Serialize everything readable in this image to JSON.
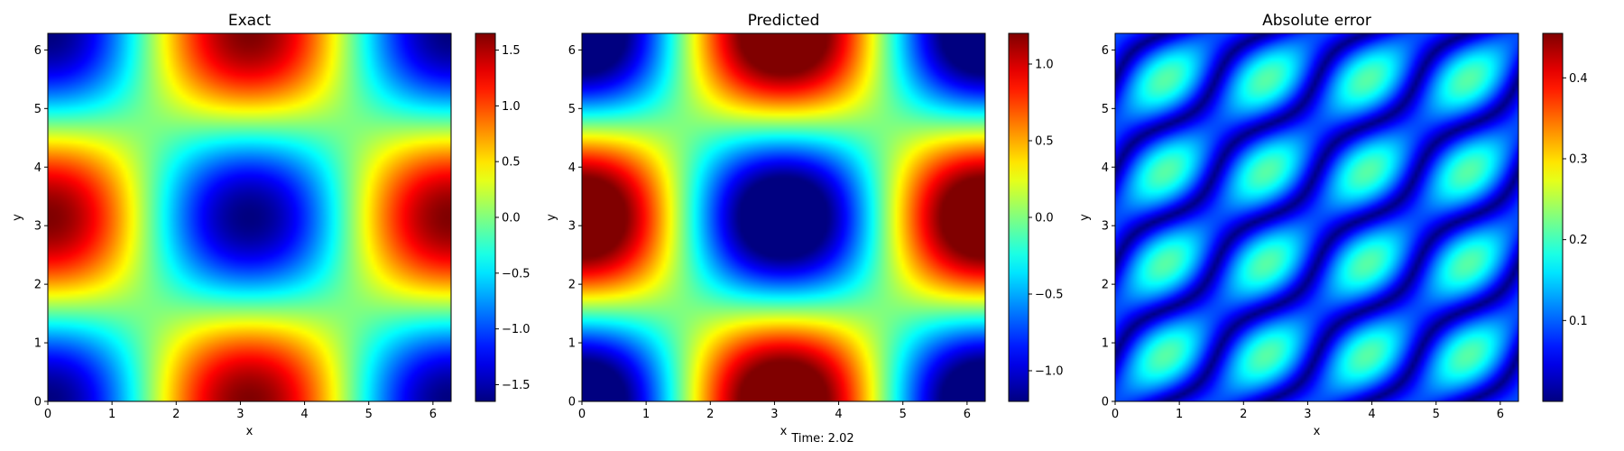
{
  "figure": {
    "footer_label": "Time: 2.02",
    "colormap": "jet",
    "frame_color": "#000000"
  },
  "chart_data": [
    {
      "type": "heatmap",
      "title": "Exact",
      "xlabel": "x",
      "ylabel": "y",
      "xlim": [
        0,
        6.283
      ],
      "ylim": [
        0,
        6.283
      ],
      "xticks": [
        0,
        1,
        2,
        3,
        4,
        5,
        6
      ],
      "yticks": [
        0,
        1,
        2,
        3,
        4,
        5,
        6
      ],
      "field": "-1.65*cos(x)*cos(y)",
      "colorbar": {
        "min": -1.65,
        "max": 1.65,
        "ticks": [
          1.5,
          1.0,
          0.5,
          0.0,
          -0.5,
          -1.0,
          -1.5
        ],
        "tick_labels": [
          "1.5",
          "1.0",
          "0.5",
          "0.0",
          "−0.5",
          "−1.0",
          "−1.5"
        ]
      }
    },
    {
      "type": "heatmap",
      "title": "Predicted",
      "xlabel": "x",
      "ylabel": "y",
      "xlim": [
        0,
        6.283
      ],
      "ylim": [
        0,
        6.283
      ],
      "xticks": [
        0,
        1,
        2,
        3,
        4,
        5,
        6
      ],
      "yticks": [
        0,
        1,
        2,
        3,
        4,
        5,
        6
      ],
      "field": "-1.55*cos(x)*cos(y), clipped to colorbar range",
      "colorbar": {
        "min": -1.2,
        "max": 1.2,
        "ticks": [
          1.0,
          0.5,
          0.0,
          -0.5,
          -1.0
        ],
        "tick_labels": [
          "1.0",
          "0.5",
          "0.0",
          "−0.5",
          "−1.0"
        ]
      }
    },
    {
      "type": "heatmap",
      "title": "Absolute error",
      "xlabel": "x",
      "ylabel": "y",
      "xlim": [
        0,
        6.283
      ],
      "ylim": [
        0,
        6.283
      ],
      "xticks": [
        0,
        1,
        2,
        3,
        4,
        5,
        6
      ],
      "yticks": [
        0,
        1,
        2,
        3,
        4,
        5,
        6
      ],
      "field": "|0.21*sin(2x)*sin(2y) + 0.09*cos(2x)*cos(2y)|",
      "colorbar": {
        "min": 0.0,
        "max": 0.455,
        "ticks": [
          0.4,
          0.3,
          0.2,
          0.1
        ],
        "tick_labels": [
          "0.4",
          "0.3",
          "0.2",
          "0.1"
        ]
      }
    }
  ]
}
